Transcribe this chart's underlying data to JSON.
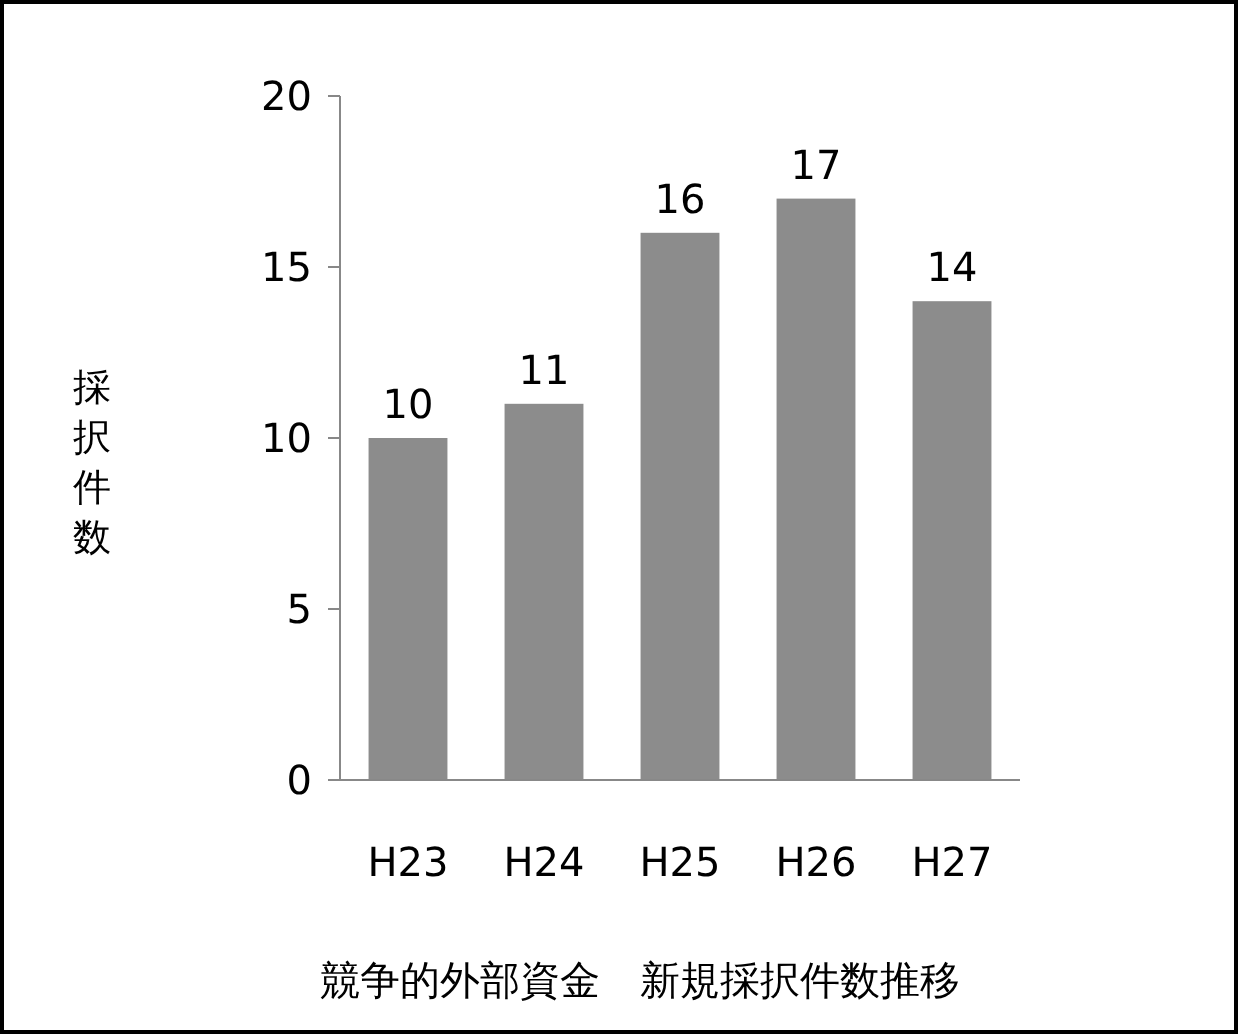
{
  "chart_data": {
    "type": "bar",
    "title": "競争的外部資金　新規採択件数推移",
    "ylabel": "採択件数",
    "categories": [
      "H23",
      "H24",
      "H25",
      "H26",
      "H27"
    ],
    "values": [
      10,
      11,
      16,
      17,
      14
    ],
    "color": "#8c8c8c",
    "ylim": [
      0,
      20
    ],
    "yticks": [
      0,
      5,
      10,
      15,
      20
    ],
    "data_labels": true
  }
}
